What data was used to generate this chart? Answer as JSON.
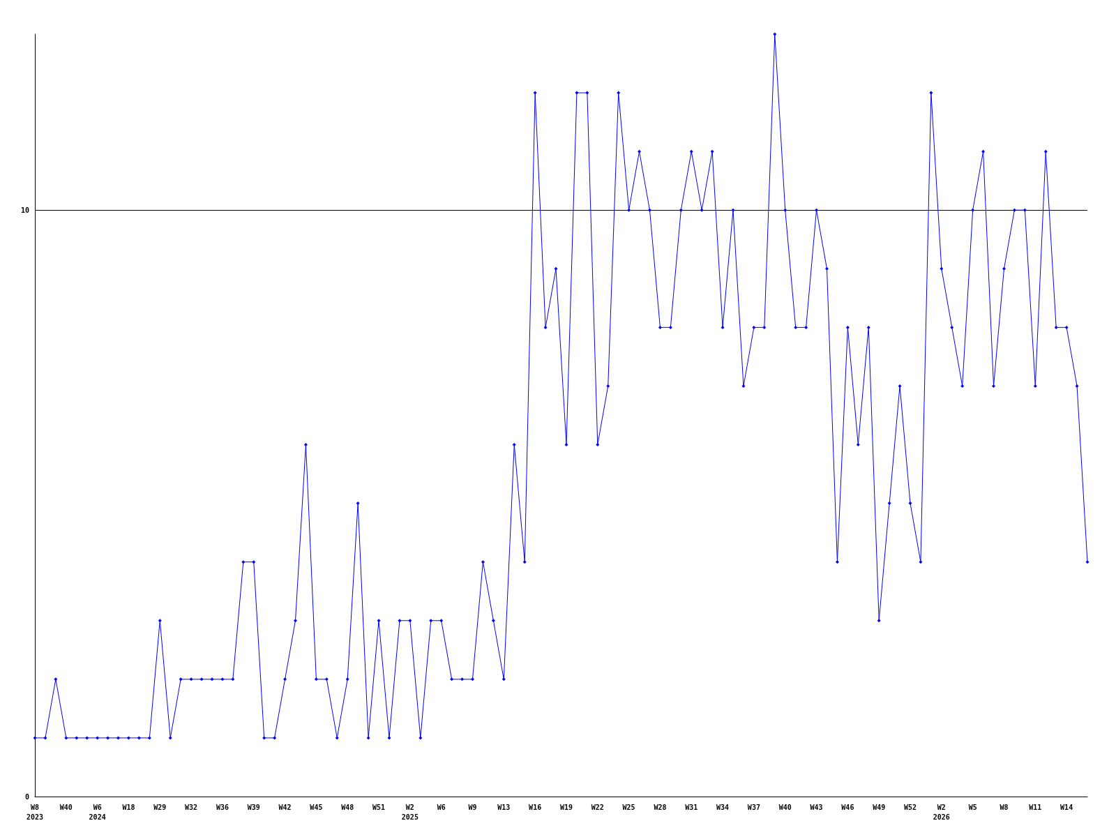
{
  "chart_data": {
    "type": "line",
    "categories": [
      "W8\n2023",
      null,
      null,
      "W40",
      null,
      null,
      "W6\n2024",
      null,
      null,
      "W18",
      null,
      null,
      "W29",
      null,
      null,
      "W32",
      null,
      null,
      "W36",
      null,
      null,
      "W39",
      null,
      null,
      "W42",
      null,
      null,
      "W45",
      null,
      null,
      "W48",
      null,
      null,
      "W51",
      null,
      null,
      "W2\n2025",
      null,
      null,
      "W6",
      null,
      null,
      "W9",
      null,
      null,
      "W13",
      null,
      null,
      "W16",
      null,
      null,
      "W19",
      null,
      null,
      "W22",
      null,
      null,
      "W25",
      null,
      null,
      "W28",
      null,
      null,
      "W31",
      null,
      null,
      "W34",
      null,
      null,
      "W37",
      null,
      null,
      "W40",
      null,
      null,
      "W43",
      null,
      null,
      "W46",
      null,
      null,
      "W49",
      null,
      null,
      "W52",
      null,
      null,
      "W2\n2026",
      null,
      null,
      "W5",
      null,
      null,
      "W8",
      null,
      null,
      "W11",
      null,
      null,
      "W14",
      null,
      null
    ],
    "series": [
      {
        "color": "#0000ff",
        "values": [
          1,
          1,
          2,
          1,
          1,
          1,
          1,
          1,
          1,
          1,
          1,
          1,
          3,
          1,
          2,
          2,
          2,
          2,
          2,
          2,
          4,
          4,
          1,
          1,
          2,
          3,
          6,
          2,
          2,
          1,
          2,
          5,
          1,
          3,
          1,
          3,
          3,
          1,
          3,
          3,
          2,
          2,
          2,
          4,
          3,
          2,
          6,
          4,
          12,
          8,
          9,
          6,
          12,
          12,
          6,
          7,
          12,
          10,
          11,
          10,
          8,
          8,
          10,
          11,
          10,
          11,
          8,
          10,
          7,
          8,
          8,
          13,
          10,
          8,
          8,
          10,
          9,
          4,
          8,
          6,
          8,
          3,
          5,
          7,
          5,
          4,
          12,
          9,
          8,
          7,
          10,
          11,
          7,
          9,
          10,
          10,
          7,
          11,
          8,
          8,
          7,
          4
        ]
      }
    ],
    "ylim": [
      0,
      13
    ],
    "yticks": [
      0,
      10
    ],
    "grid": "y",
    "marker": "diamond",
    "line_style": "solid"
  }
}
